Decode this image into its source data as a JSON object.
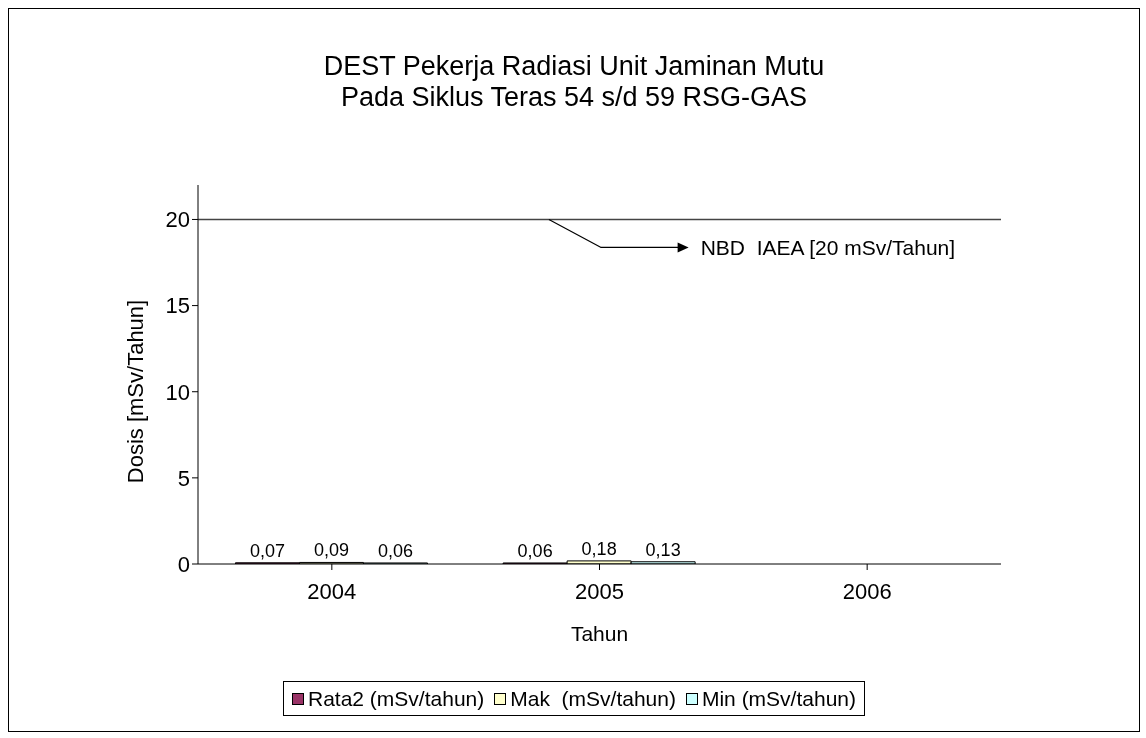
{
  "chart_data": {
    "type": "bar",
    "title": "DEST Pekerja Radiasi Unit Jaminan Mutu\nPada Siklus Teras 54 s/d 59 RSG-GAS",
    "xlabel": "Tahun",
    "ylabel": "Dosis [mSv/Tahun]",
    "categories": [
      "2004",
      "2005",
      "2006"
    ],
    "series": [
      {
        "name": "Rata2 (mSv/tahun)",
        "color": "#993366",
        "values": [
          0.07,
          0.06,
          null
        ],
        "value_labels": [
          "0,07",
          "0,06",
          null
        ]
      },
      {
        "name": "Mak  (mSv/tahun)",
        "color": "#ffffcc",
        "values": [
          0.09,
          0.18,
          null
        ],
        "value_labels": [
          "0,09",
          "0,18",
          null
        ]
      },
      {
        "name": "Min (mSv/tahun)",
        "color": "#ccffff",
        "values": [
          0.06,
          0.13,
          null
        ],
        "value_labels": [
          "0,06",
          "0,13",
          null
        ]
      }
    ],
    "ylim": [
      0,
      22
    ],
    "yticks": [
      0,
      5,
      10,
      15,
      20
    ],
    "ref_lines": [
      {
        "axis": "y",
        "value": 20,
        "label": "NBD  IAEA [20 mSv/Tahun]"
      }
    ],
    "legend": "bottom"
  }
}
